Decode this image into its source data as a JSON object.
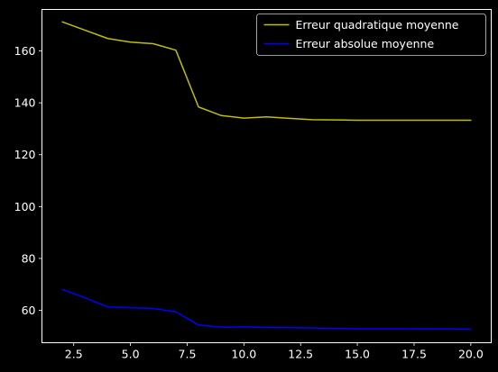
{
  "chart_data": {
    "type": "line",
    "title": "",
    "xlabel": "",
    "ylabel": "",
    "xlim": [
      1.1,
      20.9
    ],
    "ylim": [
      47.5,
      176
    ],
    "x_ticks": [
      2.5,
      5.0,
      7.5,
      10.0,
      12.5,
      15.0,
      17.5,
      20.0
    ],
    "x_tick_labels": [
      "2.5",
      "5.0",
      "7.5",
      "10.0",
      "12.5",
      "15.0",
      "17.5",
      "20.0"
    ],
    "y_ticks": [
      60,
      80,
      100,
      120,
      140,
      160
    ],
    "y_tick_labels": [
      "60",
      "80",
      "100",
      "120",
      "140",
      "160"
    ],
    "grid": false,
    "legend_position": "top-right",
    "colors": {
      "background": "#000000",
      "axes": "#ffffff"
    },
    "x": [
      2,
      3,
      4,
      5,
      6,
      7,
      8,
      9,
      10,
      11,
      12,
      13,
      14,
      15,
      16,
      17,
      18,
      19,
      20
    ],
    "series": [
      {
        "name": "Erreur quadratique moyenne",
        "color": "#bfbf00",
        "values": [
          171.2,
          168.0,
          164.8,
          163.4,
          162.8,
          160.3,
          138.4,
          135.1,
          134.1,
          134.6,
          134.0,
          133.5,
          133.4,
          133.3,
          133.3,
          133.3,
          133.3,
          133.3,
          133.3
        ]
      },
      {
        "name": "Erreur absolue moyenne",
        "color": "#0000ff",
        "values": [
          68.0,
          64.8,
          61.3,
          61.0,
          60.7,
          59.4,
          54.3,
          53.5,
          53.6,
          53.4,
          53.3,
          53.2,
          53.0,
          52.9,
          52.9,
          52.9,
          52.8,
          52.8,
          52.7
        ]
      }
    ]
  }
}
